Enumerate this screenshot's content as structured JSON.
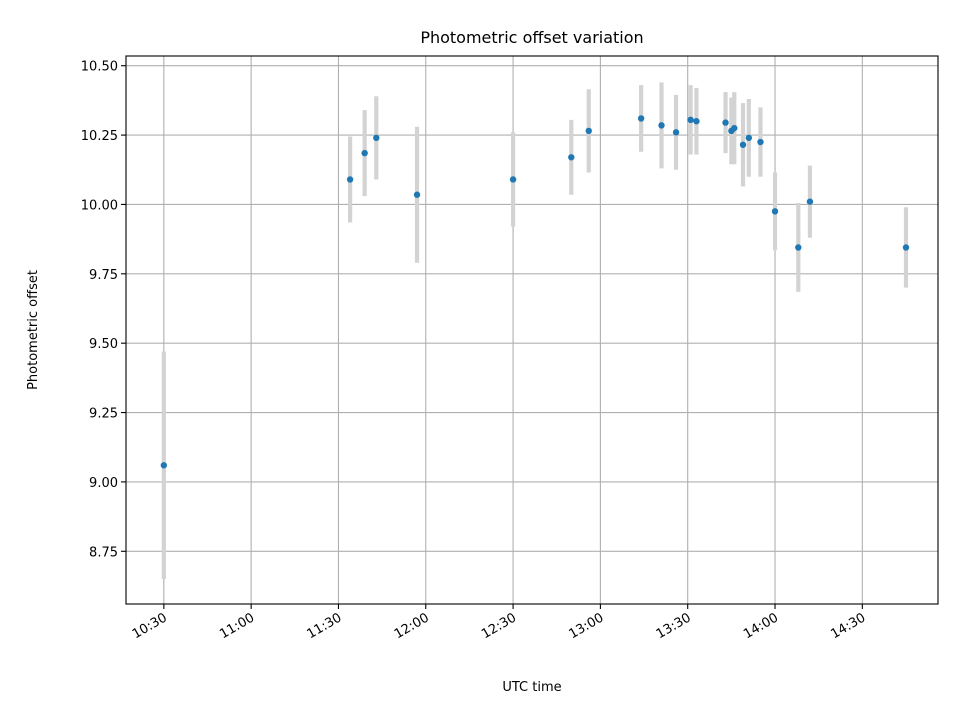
{
  "chart_data": {
    "type": "scatter",
    "title": "Photometric offset variation",
    "xlabel": "UTC time",
    "ylabel": "Photometric offset",
    "xlim": [
      "10:17",
      "14:56"
    ],
    "ylim": [
      8.56,
      10.535
    ],
    "x_ticks": [
      "10:30",
      "11:00",
      "11:30",
      "12:00",
      "12:30",
      "13:00",
      "13:30",
      "14:00",
      "14:30"
    ],
    "y_ticks": [
      "8.75",
      "9.00",
      "9.25",
      "9.50",
      "9.75",
      "10.00",
      "10.25",
      "10.50"
    ],
    "grid": true,
    "colors": {
      "points": "#1f77b4",
      "error_bars": "#d3d3d3"
    },
    "points": [
      {
        "t": "10:30",
        "y": 9.06,
        "err": 0.41
      },
      {
        "t": "11:34",
        "y": 10.09,
        "err": 0.155
      },
      {
        "t": "11:39",
        "y": 10.185,
        "err": 0.155
      },
      {
        "t": "11:43",
        "y": 10.24,
        "err": 0.15
      },
      {
        "t": "11:57",
        "y": 10.035,
        "err": 0.245
      },
      {
        "t": "12:30",
        "y": 10.09,
        "err": 0.17
      },
      {
        "t": "12:50",
        "y": 10.17,
        "err": 0.135
      },
      {
        "t": "12:56",
        "y": 10.265,
        "err": 0.15
      },
      {
        "t": "13:14",
        "y": 10.31,
        "err": 0.12
      },
      {
        "t": "13:21",
        "y": 10.285,
        "err": 0.155
      },
      {
        "t": "13:26",
        "y": 10.26,
        "err": 0.135
      },
      {
        "t": "13:31",
        "y": 10.305,
        "err": 0.125
      },
      {
        "t": "13:33",
        "y": 10.3,
        "err": 0.12
      },
      {
        "t": "13:43",
        "y": 10.295,
        "err": 0.11
      },
      {
        "t": "13:45",
        "y": 10.265,
        "err": 0.12
      },
      {
        "t": "13:46",
        "y": 10.275,
        "err": 0.13
      },
      {
        "t": "13:49",
        "y": 10.215,
        "err": 0.15
      },
      {
        "t": "13:51",
        "y": 10.24,
        "err": 0.14
      },
      {
        "t": "13:55",
        "y": 10.225,
        "err": 0.125
      },
      {
        "t": "14:00",
        "y": 9.975,
        "err": 0.14
      },
      {
        "t": "14:08",
        "y": 9.845,
        "err": 0.16
      },
      {
        "t": "14:12",
        "y": 10.01,
        "err": 0.13
      },
      {
        "t": "14:45",
        "y": 9.845,
        "err": 0.145
      }
    ]
  }
}
